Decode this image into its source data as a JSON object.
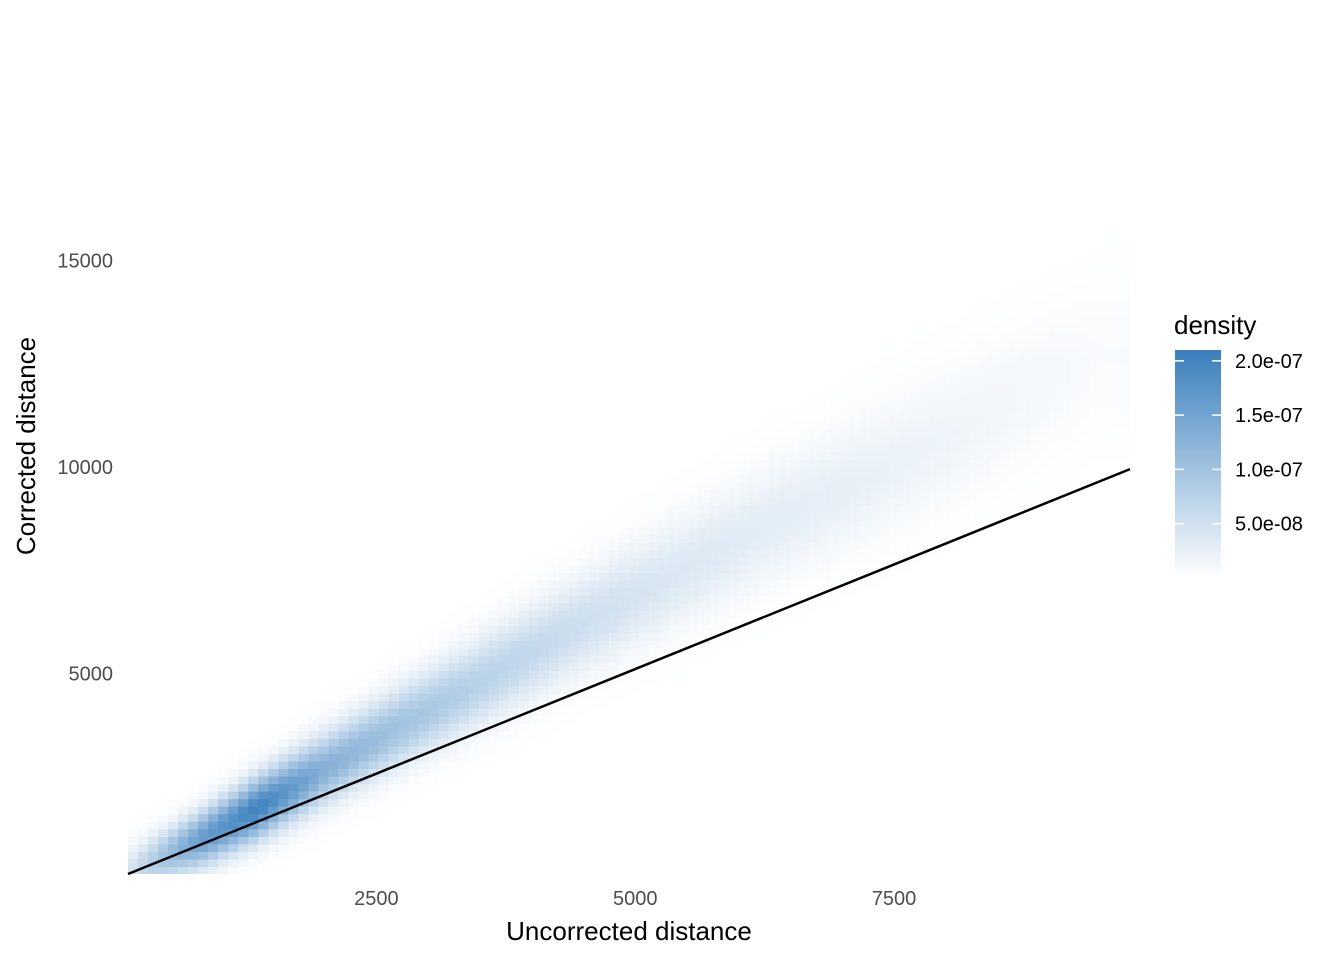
{
  "chart_data": {
    "type": "heatmap",
    "subtype": "2d-density",
    "xlabel": "Uncorrected distance",
    "ylabel": "Corrected distance",
    "x_ticks": [
      2500,
      5000,
      7500
    ],
    "y_ticks": [
      5000,
      10000,
      15000
    ],
    "xlim": [
      100,
      9780
    ],
    "ylim": [
      150,
      18400
    ],
    "grid": false,
    "reference_line": {
      "type": "identity",
      "from": [
        100,
        150
      ],
      "to": [
        9780,
        9950
      ],
      "color": "#000000"
    },
    "density_ridge": [
      {
        "x": 100,
        "y": 200,
        "density": 4e-08
      },
      {
        "x": 800,
        "y": 1000,
        "density": 1.6e-07
      },
      {
        "x": 1350,
        "y": 1750,
        "density": 2.05e-07
      },
      {
        "x": 2000,
        "y": 2700,
        "density": 1.3e-07
      },
      {
        "x": 2700,
        "y": 3700,
        "density": 1e-07
      },
      {
        "x": 3500,
        "y": 4800,
        "density": 7.5e-08
      },
      {
        "x": 4400,
        "y": 6100,
        "density": 5.5e-08
      },
      {
        "x": 5300,
        "y": 7300,
        "density": 4e-08
      },
      {
        "x": 6200,
        "y": 8500,
        "density": 3e-08
      },
      {
        "x": 7100,
        "y": 9600,
        "density": 2.5e-08
      },
      {
        "x": 8000,
        "y": 10700,
        "density": 1.8e-08
      },
      {
        "x": 8800,
        "y": 11800,
        "density": 1.2e-08
      },
      {
        "x": 9500,
        "y": 12800,
        "density": 7e-09
      }
    ],
    "legend": {
      "title": "density",
      "position": "right",
      "labels": [
        "2.0e-07",
        "1.5e-07",
        "1.0e-07",
        "5.0e-08"
      ],
      "values": [
        2e-07,
        1.5e-07,
        1e-07,
        5e-08
      ],
      "range": [
        0,
        2.1e-07
      ],
      "color_low": "#ffffff",
      "color_high": "#3a7fbd"
    }
  }
}
